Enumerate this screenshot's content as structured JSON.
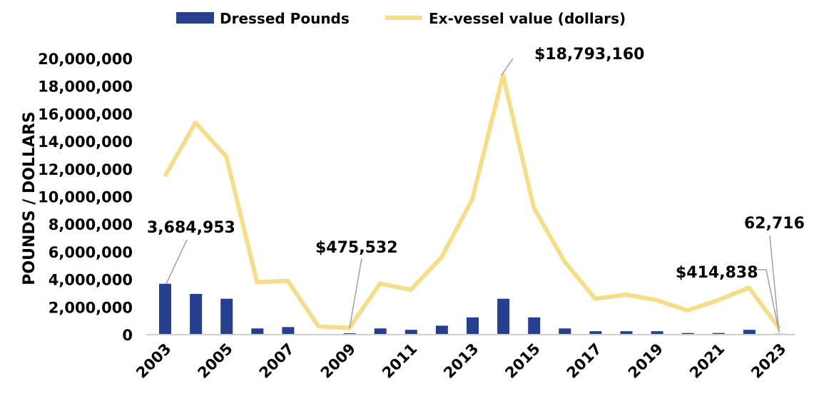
{
  "chart_data": {
    "type": "bar+line",
    "title": "",
    "xlabel": "",
    "ylabel": "POUNDS / DOLLARS",
    "ylim": [
      0,
      20000000
    ],
    "yticks": [
      "0",
      "2,000,000",
      "4,000,000",
      "6,000,000",
      "8,000,000",
      "10,000,000",
      "12,000,000",
      "14,000,000",
      "16,000,000",
      "18,000,000",
      "20,000,000"
    ],
    "x": [
      2003,
      2004,
      2005,
      2006,
      2007,
      2008,
      2009,
      2010,
      2011,
      2012,
      2013,
      2014,
      2015,
      2016,
      2017,
      2018,
      2019,
      2020,
      2021,
      2022,
      2023
    ],
    "xtick_labels": [
      "2003",
      "2005",
      "2007",
      "2009",
      "2011",
      "2013",
      "2015",
      "2017",
      "2019",
      "2021",
      "2023"
    ],
    "legend_position": "top",
    "grid": false,
    "series": [
      {
        "name": "Dressed Pounds",
        "type": "bar",
        "color": "#263f8f",
        "values": [
          3684953,
          2950000,
          2600000,
          450000,
          550000,
          20000,
          100000,
          450000,
          350000,
          650000,
          1250000,
          2600000,
          1250000,
          450000,
          250000,
          250000,
          250000,
          120000,
          120000,
          350000,
          62716
        ]
      },
      {
        "name": "Ex-vessel value (dollars)",
        "type": "line",
        "color": "#f5de8a",
        "values": [
          11470000,
          15350000,
          12900000,
          3800000,
          3900000,
          600000,
          475532,
          3700000,
          3250000,
          5600000,
          9800000,
          18793160,
          9200000,
          5300000,
          2600000,
          2900000,
          2500000,
          1750000,
          2500000,
          3400000,
          414838
        ]
      }
    ],
    "annotations": [
      {
        "text": "3,684,953",
        "series": 0,
        "year": 2003
      },
      {
        "text": "$475,532",
        "series": 1,
        "year": 2009
      },
      {
        "text": "$18,793,160",
        "series": 1,
        "year": 2014
      },
      {
        "text": "$414,838",
        "series": 1,
        "year": 2023
      },
      {
        "text": "62,716",
        "series": 0,
        "year": 2023
      }
    ]
  }
}
